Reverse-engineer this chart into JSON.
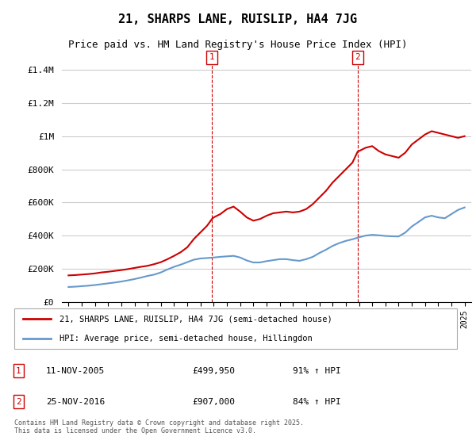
{
  "title": "21, SHARPS LANE, RUISLIP, HA4 7JG",
  "subtitle": "Price paid vs. HM Land Registry's House Price Index (HPI)",
  "xlabel": "",
  "ylabel": "",
  "ylim": [
    0,
    1500000
  ],
  "yticks": [
    0,
    200000,
    400000,
    600000,
    800000,
    1000000,
    1200000,
    1400000
  ],
  "ytick_labels": [
    "£0",
    "£200K",
    "£400K",
    "£600K",
    "£800K",
    "£1M",
    "£1.2M",
    "£1.4M"
  ],
  "red_color": "#cc0000",
  "blue_color": "#6699cc",
  "background_color": "#ffffff",
  "grid_color": "#cccccc",
  "marker1_x": 2005.86,
  "marker2_x": 2016.9,
  "marker1_label": "1",
  "marker2_label": "2",
  "legend_entry1": "21, SHARPS LANE, RUISLIP, HA4 7JG (semi-detached house)",
  "legend_entry2": "HPI: Average price, semi-detached house, Hillingdon",
  "note1_label": "1",
  "note1_date": "11-NOV-2005",
  "note1_price": "£499,950",
  "note1_hpi": "91% ↑ HPI",
  "note2_label": "2",
  "note2_date": "25-NOV-2016",
  "note2_price": "£907,000",
  "note2_hpi": "84% ↑ HPI",
  "footer": "Contains HM Land Registry data © Crown copyright and database right 2025.\nThis data is licensed under the Open Government Licence v3.0.",
  "red_x": [
    1995,
    1995.5,
    1996,
    1996.5,
    1997,
    1997.5,
    1998,
    1998.5,
    1999,
    1999.5,
    2000,
    2000.5,
    2001,
    2001.5,
    2002,
    2002.5,
    2003,
    2003.5,
    2004,
    2004.5,
    2005,
    2005.5,
    2005.86,
    2006,
    2006.5,
    2007,
    2007.5,
    2008,
    2008.5,
    2009,
    2009.5,
    2010,
    2010.5,
    2011,
    2011.5,
    2012,
    2012.5,
    2013,
    2013.5,
    2014,
    2014.5,
    2015,
    2015.5,
    2016,
    2016.5,
    2016.9,
    2017,
    2017.5,
    2018,
    2018.5,
    2019,
    2019.5,
    2020,
    2020.5,
    2021,
    2021.5,
    2022,
    2022.5,
    2023,
    2023.5,
    2024,
    2024.5,
    2025
  ],
  "red_y": [
    160000,
    162000,
    165000,
    168000,
    172000,
    178000,
    182000,
    187000,
    192000,
    198000,
    205000,
    212000,
    218000,
    228000,
    240000,
    258000,
    278000,
    300000,
    330000,
    380000,
    420000,
    460000,
    499950,
    510000,
    530000,
    560000,
    575000,
    545000,
    510000,
    490000,
    500000,
    520000,
    535000,
    540000,
    545000,
    540000,
    545000,
    560000,
    590000,
    630000,
    670000,
    720000,
    760000,
    800000,
    840000,
    907000,
    910000,
    930000,
    940000,
    910000,
    890000,
    880000,
    870000,
    900000,
    950000,
    980000,
    1010000,
    1030000,
    1020000,
    1010000,
    1000000,
    990000,
    1000000
  ],
  "blue_x": [
    1995,
    1995.5,
    1996,
    1996.5,
    1997,
    1997.5,
    1998,
    1998.5,
    1999,
    1999.5,
    2000,
    2000.5,
    2001,
    2001.5,
    2002,
    2002.5,
    2003,
    2003.5,
    2004,
    2004.5,
    2005,
    2005.5,
    2006,
    2006.5,
    2007,
    2007.5,
    2008,
    2008.5,
    2009,
    2009.5,
    2010,
    2010.5,
    2011,
    2011.5,
    2012,
    2012.5,
    2013,
    2013.5,
    2014,
    2014.5,
    2015,
    2015.5,
    2016,
    2016.5,
    2017,
    2017.5,
    2018,
    2018.5,
    2019,
    2019.5,
    2020,
    2020.5,
    2021,
    2021.5,
    2022,
    2022.5,
    2023,
    2023.5,
    2024,
    2024.5,
    2025
  ],
  "blue_y": [
    90000,
    92000,
    95000,
    98000,
    102000,
    107000,
    112000,
    117000,
    123000,
    130000,
    138000,
    147000,
    157000,
    165000,
    178000,
    196000,
    212000,
    225000,
    240000,
    255000,
    262000,
    265000,
    268000,
    272000,
    275000,
    278000,
    268000,
    250000,
    238000,
    238000,
    246000,
    252000,
    258000,
    258000,
    252000,
    248000,
    258000,
    272000,
    295000,
    315000,
    338000,
    355000,
    368000,
    378000,
    390000,
    400000,
    405000,
    402000,
    398000,
    396000,
    395000,
    418000,
    455000,
    482000,
    510000,
    520000,
    510000,
    505000,
    530000,
    555000,
    570000
  ]
}
